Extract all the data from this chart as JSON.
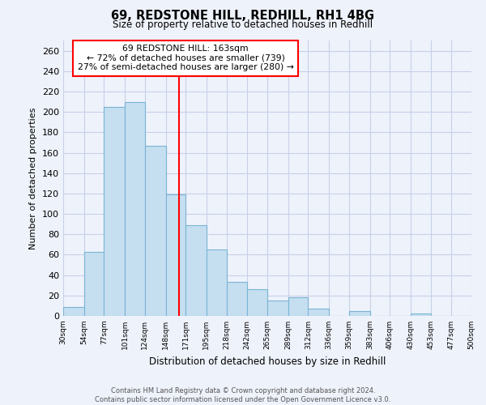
{
  "title": "69, REDSTONE HILL, REDHILL, RH1 4BG",
  "subtitle": "Size of property relative to detached houses in Redhill",
  "xlabel": "Distribution of detached houses by size in Redhill",
  "ylabel": "Number of detached properties",
  "bar_color": "#c5dff0",
  "bar_edge_color": "#7ab4d4",
  "bins": [
    30,
    54,
    77,
    101,
    124,
    148,
    171,
    195,
    218,
    242,
    265,
    289,
    312,
    336,
    359,
    383,
    406,
    430,
    453,
    477,
    500
  ],
  "bin_labels": [
    "30sqm",
    "54sqm",
    "77sqm",
    "101sqm",
    "124sqm",
    "148sqm",
    "171sqm",
    "195sqm",
    "218sqm",
    "242sqm",
    "265sqm",
    "289sqm",
    "312sqm",
    "336sqm",
    "359sqm",
    "383sqm",
    "406sqm",
    "430sqm",
    "453sqm",
    "477sqm",
    "500sqm"
  ],
  "values": [
    9,
    63,
    205,
    210,
    167,
    119,
    89,
    65,
    33,
    26,
    15,
    18,
    7,
    0,
    5,
    0,
    0,
    2,
    0,
    0
  ],
  "ylim": [
    0,
    270
  ],
  "yticks": [
    0,
    20,
    40,
    60,
    80,
    100,
    120,
    140,
    160,
    180,
    200,
    220,
    240,
    260
  ],
  "property_size": 163,
  "annotation_title": "69 REDSTONE HILL: 163sqm",
  "annotation_line1": "← 72% of detached houses are smaller (739)",
  "annotation_line2": "27% of semi-detached houses are larger (280) →",
  "annotation_box_color": "white",
  "annotation_box_edge_color": "red",
  "marker_line_color": "red",
  "background_color": "#eef2fb",
  "grid_color": "#c8d0e8",
  "footer1": "Contains HM Land Registry data © Crown copyright and database right 2024.",
  "footer2": "Contains public sector information licensed under the Open Government Licence v3.0."
}
